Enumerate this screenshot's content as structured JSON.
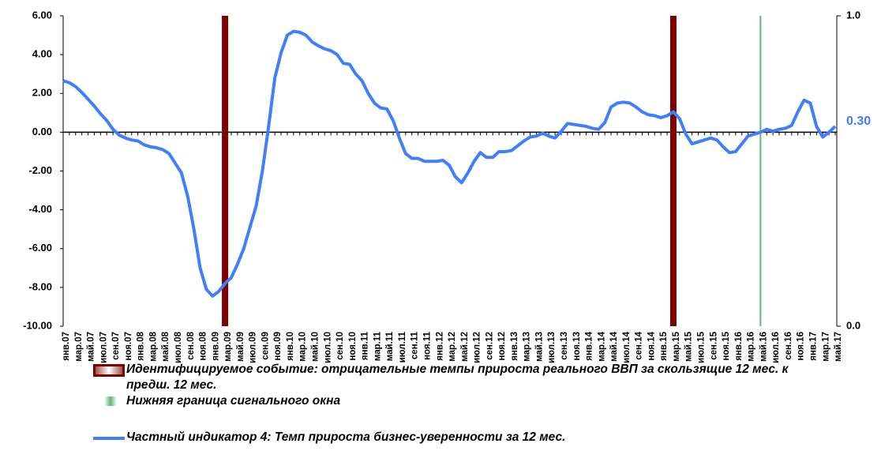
{
  "chart_data": {
    "type": "line",
    "categories": [
      "янв.07",
      null,
      "мар.07",
      null,
      "май.07",
      null,
      "июл.07",
      null,
      "сен.07",
      null,
      "ноя.07",
      null,
      "янв.08",
      null,
      "мар.08",
      null,
      "май.08",
      null,
      "июл.08",
      null,
      "сен.08",
      null,
      "ноя.08",
      null,
      "янв.09",
      null,
      "мар.09",
      null,
      "май.09",
      null,
      "июл.09",
      null,
      "сен.09",
      null,
      "ноя.09",
      null,
      "янв.10",
      null,
      "мар.10",
      null,
      "май.10",
      null,
      "июл.10",
      null,
      "сен.10",
      null,
      "ноя.10",
      null,
      "янв.11",
      null,
      "мар.11",
      null,
      "май.11",
      null,
      "июл.11",
      null,
      "сен.11",
      null,
      "ноя.11",
      null,
      "янв.12",
      null,
      "мар.12",
      null,
      "май.12",
      null,
      "июл.12",
      null,
      "сен.12",
      null,
      "ноя.12",
      null,
      "янв.13",
      null,
      "мар.13",
      null,
      "май.13",
      null,
      "июл.13",
      null,
      "сен.13",
      null,
      "ноя.13",
      null,
      "янв.14",
      null,
      "мар.14",
      null,
      "май.14",
      null,
      "июл.14",
      null,
      "сен.14",
      null,
      "ноя.14",
      null,
      "янв.15",
      null,
      "мар.15",
      null,
      "май.15",
      null,
      "июл.15",
      null,
      "сен.15",
      null,
      "ноя.15",
      null,
      "янв.16",
      null,
      "мар.16",
      null,
      "май.16",
      null,
      "июл.16",
      null,
      "сен.16",
      null,
      "ноя.16",
      null,
      "янв.17",
      null,
      "мар.17",
      null,
      "май.17"
    ],
    "series": [
      {
        "name": "Идентифицируемое событие: отрицательные темпы прироста реального ВВП за скользящие 12 мес. к предш. 12 мес.",
        "type": "bar",
        "axis": "y2",
        "color": "#7f0000",
        "values": [
          null,
          null,
          null,
          null,
          null,
          null,
          null,
          null,
          null,
          null,
          null,
          null,
          null,
          null,
          null,
          null,
          null,
          null,
          null,
          null,
          null,
          null,
          null,
          null,
          null,
          null,
          1,
          null,
          null,
          null,
          null,
          null,
          null,
          null,
          null,
          null,
          null,
          null,
          null,
          null,
          null,
          null,
          null,
          null,
          null,
          null,
          null,
          null,
          null,
          null,
          null,
          null,
          null,
          null,
          null,
          null,
          null,
          null,
          null,
          null,
          null,
          null,
          null,
          null,
          null,
          null,
          null,
          null,
          null,
          null,
          null,
          null,
          null,
          null,
          null,
          null,
          null,
          null,
          null,
          null,
          null,
          null,
          null,
          null,
          null,
          null,
          null,
          null,
          null,
          null,
          null,
          null,
          null,
          null,
          null,
          null,
          null,
          null,
          1,
          null,
          null,
          null,
          null,
          null,
          null,
          null,
          null,
          null,
          null,
          null,
          null,
          null,
          null,
          null,
          null,
          null,
          null,
          null,
          null,
          null,
          null,
          null,
          null,
          null,
          null
        ]
      },
      {
        "name": "Нижняя граница сигнального окна",
        "type": "bar",
        "axis": "y2",
        "color": "#5fb87a",
        "values": [
          null,
          null,
          null,
          null,
          null,
          null,
          null,
          null,
          null,
          null,
          null,
          null,
          null,
          null,
          null,
          null,
          null,
          null,
          null,
          null,
          null,
          null,
          null,
          null,
          null,
          null,
          null,
          null,
          null,
          null,
          null,
          null,
          null,
          null,
          null,
          null,
          null,
          null,
          null,
          null,
          null,
          null,
          null,
          null,
          null,
          null,
          null,
          null,
          null,
          null,
          null,
          null,
          null,
          null,
          null,
          null,
          null,
          null,
          null,
          null,
          null,
          null,
          null,
          null,
          null,
          null,
          null,
          null,
          null,
          null,
          null,
          null,
          null,
          null,
          null,
          null,
          null,
          null,
          null,
          null,
          null,
          null,
          null,
          null,
          null,
          null,
          null,
          null,
          null,
          null,
          null,
          null,
          null,
          null,
          null,
          null,
          null,
          null,
          null,
          null,
          null,
          null,
          null,
          null,
          null,
          null,
          null,
          null,
          null,
          null,
          null,
          null,
          1,
          null,
          null,
          null,
          null,
          null,
          null,
          null,
          null,
          null,
          null,
          null,
          null
        ]
      },
      {
        "name": "Частный индикатор 4: Темп прироста бизнес-уверенности за 12 мес.",
        "type": "line",
        "color": "#3f7fff",
        "values": [
          2.65,
          2.55,
          2.35,
          2.05,
          1.7,
          1.35,
          0.95,
          0.6,
          0.15,
          -0.15,
          -0.3,
          -0.4,
          -0.45,
          -0.65,
          -0.75,
          -0.8,
          -0.9,
          -1.1,
          -1.6,
          -2.1,
          -3.3,
          -5.0,
          -7.0,
          -8.1,
          -8.45,
          -8.2,
          -7.8,
          -7.5,
          -6.8,
          -6.0,
          -4.9,
          -3.8,
          -2.0,
          0.3,
          2.8,
          4.1,
          5.0,
          5.2,
          5.15,
          5.0,
          4.65,
          4.45,
          4.3,
          4.2,
          4.0,
          3.55,
          3.5,
          3.0,
          2.65,
          2.0,
          1.5,
          1.25,
          1.2,
          0.6,
          -0.3,
          -1.1,
          -1.35,
          -1.35,
          -1.5,
          -1.5,
          -1.5,
          -1.45,
          -1.7,
          -2.3,
          -2.6,
          -2.1,
          -1.5,
          -1.05,
          -1.3,
          -1.3,
          -1.0,
          -1.0,
          -0.95,
          -0.7,
          -0.45,
          -0.25,
          -0.2,
          -0.05,
          -0.2,
          -0.3,
          0.05,
          0.45,
          0.4,
          0.35,
          0.3,
          0.2,
          0.15,
          0.5,
          1.3,
          1.5,
          1.55,
          1.5,
          1.3,
          1.05,
          0.9,
          0.85,
          0.75,
          0.85,
          1.05,
          0.7,
          -0.1,
          -0.6,
          -0.5,
          -0.4,
          -0.3,
          -0.4,
          -0.75,
          -1.05,
          -1.0,
          -0.6,
          -0.2,
          -0.1,
          0.0,
          0.15,
          0.05,
          0.15,
          0.2,
          0.35,
          1.05,
          1.65,
          1.5,
          0.3,
          -0.25,
          0.0,
          0.3
        ],
        "value_labels": [
          null,
          null,
          null,
          null,
          null,
          null,
          null,
          null,
          null,
          null,
          null,
          null,
          null,
          null,
          null,
          null,
          null,
          null,
          null,
          null,
          null,
          null,
          null,
          null,
          null,
          null,
          null,
          null,
          null,
          null,
          null,
          null,
          null,
          null,
          null,
          null,
          null,
          null,
          null,
          null,
          null,
          null,
          null,
          null,
          null,
          null,
          null,
          null,
          null,
          null,
          null,
          null,
          null,
          null,
          null,
          null,
          null,
          null,
          null,
          null,
          null,
          null,
          null,
          null,
          null,
          null,
          null,
          null,
          null,
          null,
          null,
          null,
          null,
          null,
          null,
          null,
          null,
          null,
          null,
          null,
          null,
          null,
          null,
          null,
          null,
          null,
          null,
          null,
          null,
          null,
          null,
          null,
          null,
          null,
          null,
          null,
          null,
          null,
          null,
          null,
          null,
          null,
          null,
          null,
          null,
          null,
          null,
          null,
          null,
          null,
          null,
          null,
          null,
          null,
          null,
          null,
          null,
          null,
          null,
          null,
          null,
          null,
          null,
          null,
          "0.30"
        ]
      }
    ],
    "ylim": [
      -10,
      6
    ],
    "yticks": [
      {
        "value": -10,
        "label": "-10.00"
      },
      {
        "value": -8,
        "label": "-8.00"
      },
      {
        "value": -6,
        "label": "-6.00"
      },
      {
        "value": -4,
        "label": "-4.00"
      },
      {
        "value": -2,
        "label": "-2.00"
      },
      {
        "value": 0,
        "label": "0.00"
      },
      {
        "value": 2,
        "label": "2.00"
      },
      {
        "value": 4,
        "label": "4.00"
      },
      {
        "value": 6,
        "label": "6.00"
      }
    ],
    "y2lim": [
      0,
      1
    ],
    "y2ticks": [
      {
        "value": 0,
        "label": "0.0"
      },
      {
        "value": 1,
        "label": "1.0"
      }
    ],
    "grid": false
  }
}
